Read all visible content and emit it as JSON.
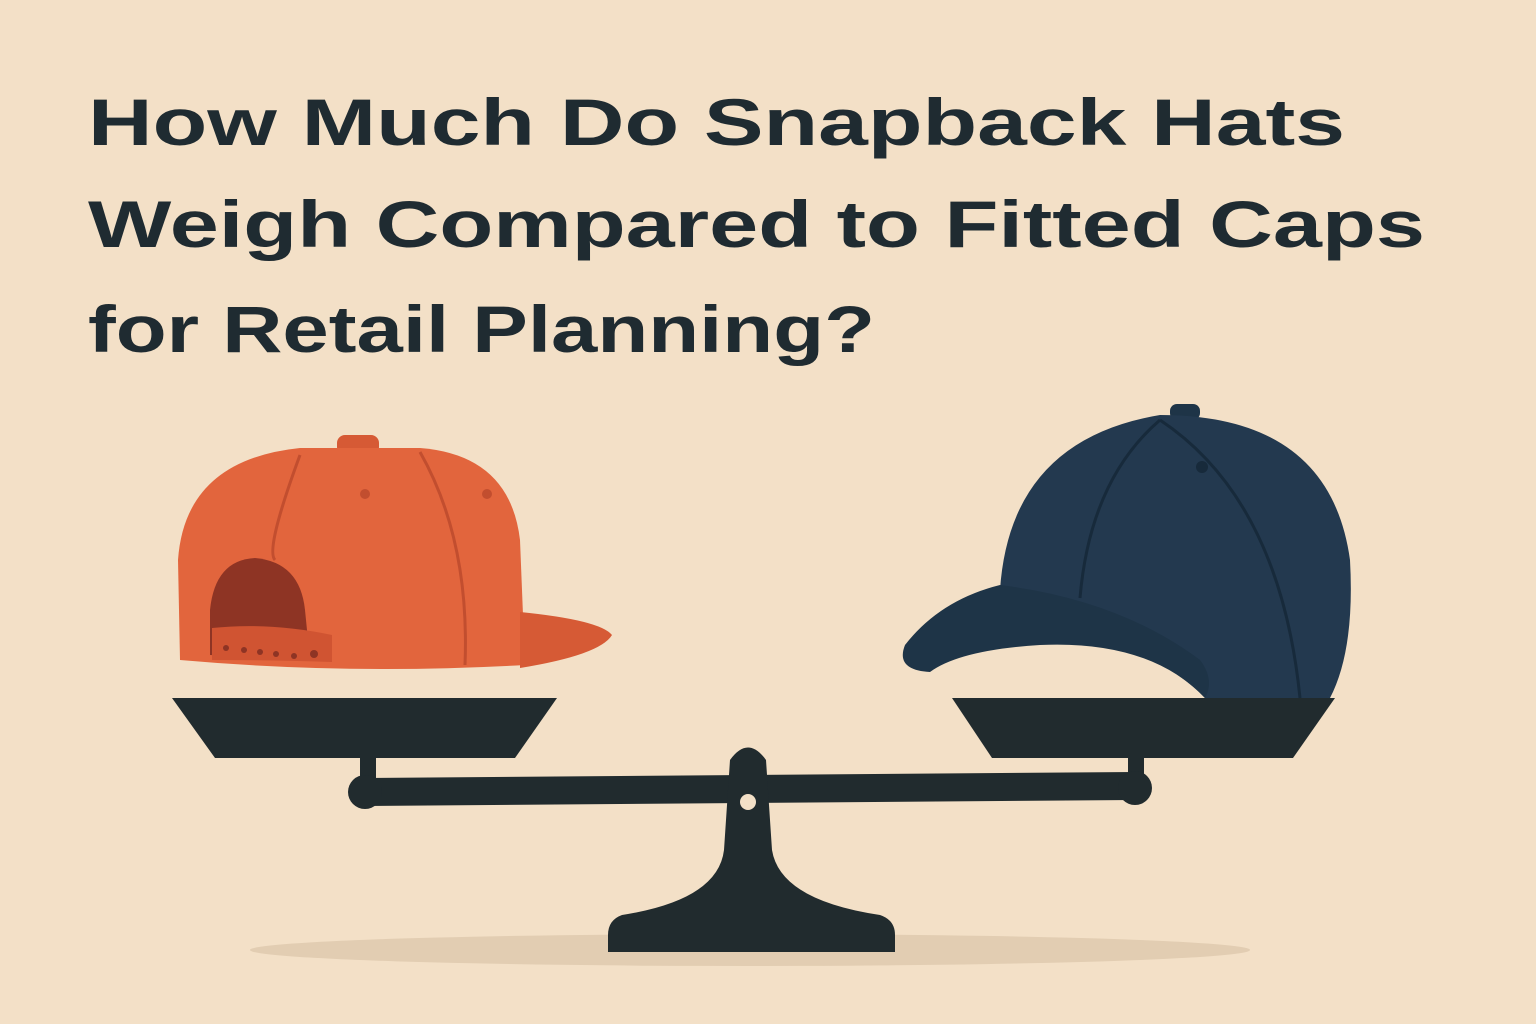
{
  "title": {
    "lines": [
      "How Much Do Snapback Hats",
      "Weigh Compared to Fitted Caps",
      "for Retail Planning?"
    ]
  }
}
